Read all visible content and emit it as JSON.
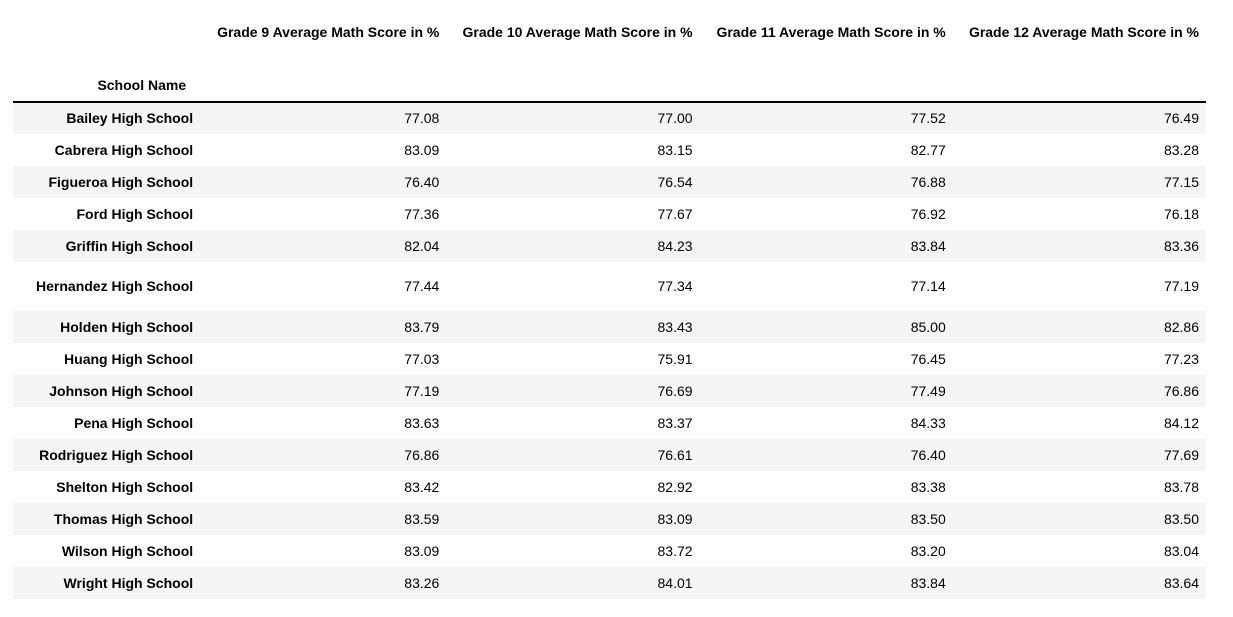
{
  "table": {
    "columns": [
      "Grade 9 Average Math Score in %",
      "Grade 10 Average Math Score in %",
      "Grade 11 Average Math Score in %",
      "Grade 12 Average Math Score in %"
    ],
    "index_name": "School Name",
    "rows": [
      {
        "school": "Bailey High School",
        "values": [
          "77.08",
          "77.00",
          "77.52",
          "76.49"
        ]
      },
      {
        "school": "Cabrera High School",
        "values": [
          "83.09",
          "83.15",
          "82.77",
          "83.28"
        ]
      },
      {
        "school": "Figueroa High School",
        "values": [
          "76.40",
          "76.54",
          "76.88",
          "77.15"
        ]
      },
      {
        "school": "Ford High School",
        "values": [
          "77.36",
          "77.67",
          "76.92",
          "76.18"
        ]
      },
      {
        "school": "Griffin High School",
        "values": [
          "82.04",
          "84.23",
          "83.84",
          "83.36"
        ]
      },
      {
        "school": "Hernandez High School",
        "values": [
          "77.44",
          "77.34",
          "77.14",
          "77.19"
        ]
      },
      {
        "school": "Holden High School",
        "values": [
          "83.79",
          "83.43",
          "85.00",
          "82.86"
        ]
      },
      {
        "school": "Huang High School",
        "values": [
          "77.03",
          "75.91",
          "76.45",
          "77.23"
        ]
      },
      {
        "school": "Johnson High School",
        "values": [
          "77.19",
          "76.69",
          "77.49",
          "76.86"
        ]
      },
      {
        "school": "Pena High School",
        "values": [
          "83.63",
          "83.37",
          "84.33",
          "84.12"
        ]
      },
      {
        "school": "Rodriguez High School",
        "values": [
          "76.86",
          "76.61",
          "76.40",
          "77.69"
        ]
      },
      {
        "school": "Shelton High School",
        "values": [
          "83.42",
          "82.92",
          "83.38",
          "83.78"
        ]
      },
      {
        "school": "Thomas High School",
        "values": [
          "83.59",
          "83.09",
          "83.50",
          "83.50"
        ]
      },
      {
        "school": "Wilson High School",
        "values": [
          "83.09",
          "83.72",
          "83.20",
          "83.04"
        ]
      },
      {
        "school": "Wright High School",
        "values": [
          "83.26",
          "84.01",
          "83.84",
          "83.64"
        ]
      }
    ]
  }
}
